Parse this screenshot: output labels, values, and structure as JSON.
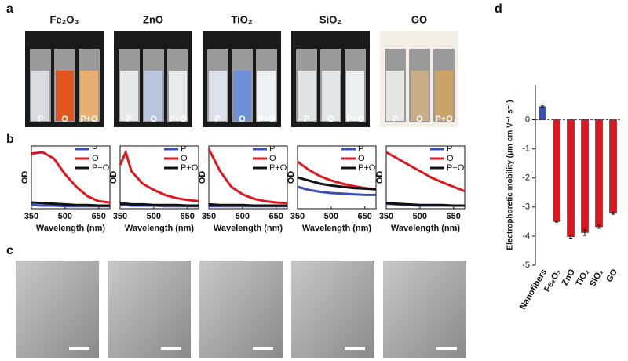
{
  "panel_labels": [
    "a",
    "b",
    "c",
    "d"
  ],
  "photos": {
    "names": [
      "Fe₂O₃",
      "ZnO",
      "TiO₂",
      "SiO₂",
      "GO"
    ],
    "vial_labels": [
      "P",
      "O",
      "P+O"
    ]
  },
  "chart_data": [
    {
      "type": "line",
      "xlabel": "Wavelength (nm)",
      "ylabel": "OD",
      "x": [
        350,
        400,
        450,
        500,
        550,
        600,
        650,
        700
      ],
      "xlim": [
        350,
        700
      ],
      "xticks": [
        350,
        500,
        650
      ],
      "ylim": [
        0,
        1
      ],
      "series": [
        {
          "name": "P",
          "color": "#3a4fb0",
          "values": [
            0.06,
            0.05,
            0.05,
            0.04,
            0.04,
            0.04,
            0.04,
            0.04
          ]
        },
        {
          "name": "O",
          "color": "#e0161e",
          "values": [
            0.88,
            0.9,
            0.8,
            0.55,
            0.35,
            0.2,
            0.12,
            0.1
          ]
        },
        {
          "name": "P+O",
          "color": "#111111",
          "values": [
            0.1,
            0.09,
            0.08,
            0.07,
            0.06,
            0.06,
            0.05,
            0.05
          ]
        }
      ]
    },
    {
      "type": "line",
      "xlabel": "Wavelength (nm)",
      "ylabel": "OD",
      "x": [
        350,
        375,
        400,
        450,
        500,
        550,
        600,
        650,
        700
      ],
      "xlim": [
        350,
        700
      ],
      "xticks": [
        350,
        500,
        650
      ],
      "ylim": [
        0,
        1
      ],
      "series": [
        {
          "name": "P",
          "color": "#3a4fb0",
          "values": [
            0.06,
            0.06,
            0.05,
            0.05,
            0.05,
            0.04,
            0.04,
            0.04,
            0.04
          ]
        },
        {
          "name": "O",
          "color": "#e0161e",
          "values": [
            0.7,
            0.9,
            0.6,
            0.4,
            0.3,
            0.22,
            0.17,
            0.14,
            0.12
          ]
        },
        {
          "name": "P+O",
          "color": "#111111",
          "values": [
            0.08,
            0.08,
            0.07,
            0.07,
            0.06,
            0.06,
            0.06,
            0.05,
            0.05
          ]
        }
      ]
    },
    {
      "type": "line",
      "xlabel": "Wavelength (nm)",
      "ylabel": "OD",
      "x": [
        350,
        400,
        450,
        500,
        550,
        600,
        650,
        700
      ],
      "xlim": [
        350,
        700
      ],
      "xticks": [
        350,
        500,
        650
      ],
      "ylim": [
        0,
        1
      ],
      "series": [
        {
          "name": "P",
          "color": "#3a4fb0",
          "values": [
            0.04,
            0.04,
            0.04,
            0.04,
            0.04,
            0.04,
            0.04,
            0.04
          ]
        },
        {
          "name": "O",
          "color": "#e0161e",
          "values": [
            0.95,
            0.6,
            0.35,
            0.23,
            0.16,
            0.12,
            0.1,
            0.09
          ]
        },
        {
          "name": "P+O",
          "color": "#111111",
          "values": [
            0.07,
            0.06,
            0.06,
            0.06,
            0.05,
            0.05,
            0.05,
            0.05
          ]
        }
      ]
    },
    {
      "type": "line",
      "xlabel": "Wavelength (nm)",
      "ylabel": "OD",
      "x": [
        350,
        400,
        450,
        500,
        550,
        600,
        650,
        700
      ],
      "xlim": [
        350,
        700
      ],
      "xticks": [
        350,
        500,
        650
      ],
      "ylim": [
        0,
        1
      ],
      "series": [
        {
          "name": "P",
          "color": "#3a4fb0",
          "values": [
            0.35,
            0.3,
            0.27,
            0.25,
            0.24,
            0.23,
            0.22,
            0.22
          ]
        },
        {
          "name": "O",
          "color": "#e0161e",
          "values": [
            0.75,
            0.62,
            0.52,
            0.45,
            0.4,
            0.36,
            0.33,
            0.31
          ]
        },
        {
          "name": "P+O",
          "color": "#111111",
          "values": [
            0.5,
            0.45,
            0.4,
            0.37,
            0.35,
            0.33,
            0.32,
            0.31
          ]
        }
      ]
    },
    {
      "type": "line",
      "xlabel": "Wavelength (nm)",
      "ylabel": "OD",
      "x": [
        350,
        400,
        450,
        500,
        550,
        600,
        650,
        700
      ],
      "xlim": [
        350,
        700
      ],
      "xticks": [
        350,
        500,
        650
      ],
      "ylim": [
        0,
        1
      ],
      "series": [
        {
          "name": "P",
          "color": "#3a4fb0",
          "values": [
            0.08,
            0.07,
            0.06,
            0.05,
            0.05,
            0.05,
            0.05,
            0.05
          ]
        },
        {
          "name": "O",
          "color": "#e0161e",
          "values": [
            0.9,
            0.8,
            0.7,
            0.6,
            0.5,
            0.42,
            0.35,
            0.28
          ]
        },
        {
          "name": "P+O",
          "color": "#111111",
          "values": [
            0.09,
            0.08,
            0.07,
            0.06,
            0.06,
            0.06,
            0.05,
            0.05
          ]
        }
      ]
    },
    {
      "type": "bar",
      "ylabel": "Electrophoretic mobility  (μm cm V⁻¹ s⁻¹)",
      "categories": [
        "Nanofibers",
        "Fe₂O₃",
        "ZnO",
        "TiO₂",
        "SiO₂",
        "GO"
      ],
      "values": [
        0.45,
        -3.5,
        -4.02,
        -3.88,
        -3.68,
        -3.22
      ],
      "errors": [
        0.03,
        0.02,
        0.05,
        0.1,
        0.05,
        0.03
      ],
      "colors": [
        "#3a4fb0",
        "#e0161e",
        "#e0161e",
        "#e0161e",
        "#e0161e",
        "#e0161e"
      ],
      "ylim": [
        -5,
        1.2
      ],
      "yticks": [
        0,
        -1,
        -2,
        -3,
        -4,
        -5
      ]
    }
  ]
}
